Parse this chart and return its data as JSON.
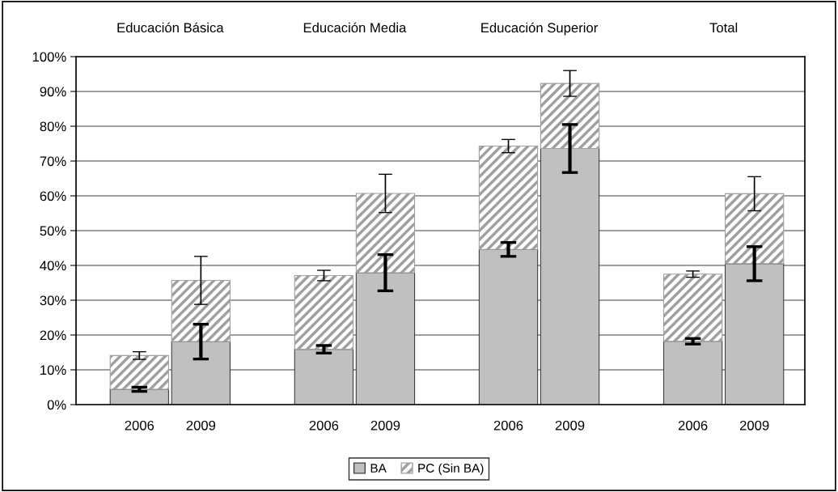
{
  "chart_data": {
    "type": "bar",
    "stacked": true,
    "categories": [
      "2006",
      "2009",
      null,
      "2006",
      "2009",
      null,
      "2006",
      "2009",
      null,
      "2006",
      "2009"
    ],
    "series": [
      {
        "name": "BA",
        "color": "#c0c0c0",
        "values": [
          4.4,
          18.1,
          null,
          15.9,
          37.9,
          null,
          44.6,
          73.6,
          null,
          18.2,
          40.5
        ],
        "errors": [
          0.6,
          5.0,
          null,
          1.1,
          5.2,
          null,
          2.0,
          6.9,
          null,
          0.8,
          4.9
        ]
      },
      {
        "name": "PC (Sin BA)",
        "color": "#a0a0a0",
        "values": [
          9.7,
          17.6,
          null,
          21.2,
          22.8,
          null,
          29.7,
          18.7,
          null,
          19.3,
          20.1
        ],
        "errors": [
          1.1,
          6.9,
          null,
          1.5,
          5.5,
          null,
          1.9,
          3.7,
          null,
          0.9,
          4.9
        ]
      }
    ],
    "annotations": [
      "Educación Básica",
      "Educación Media",
      "Educación Superior",
      "Total"
    ],
    "ylim": [
      0,
      100
    ],
    "yticks": [
      {
        "value": 0,
        "label": "0%"
      },
      {
        "value": 10,
        "label": "10%"
      },
      {
        "value": 20,
        "label": "20%"
      },
      {
        "value": 30,
        "label": "30%"
      },
      {
        "value": 40,
        "label": "40%"
      },
      {
        "value": 50,
        "label": "50%"
      },
      {
        "value": 60,
        "label": "60%"
      },
      {
        "value": 70,
        "label": "70%"
      },
      {
        "value": 80,
        "label": "80%"
      },
      {
        "value": 90,
        "label": "90%"
      },
      {
        "value": 100,
        "label": "100%"
      }
    ],
    "grid": "y",
    "legend": "bottom"
  }
}
